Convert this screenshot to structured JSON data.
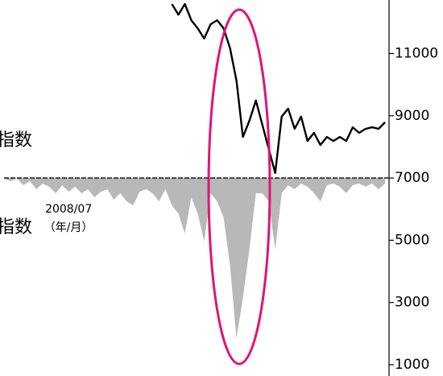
{
  "chart_data": {
    "type": "line",
    "y_axis_label": "指数",
    "area_axis_label": "指数",
    "x_label": "（年/月）",
    "categories": [
      null,
      null,
      null,
      null,
      null,
      null,
      null,
      null,
      null,
      null,
      "2008/07",
      null,
      null,
      null,
      null,
      null,
      null,
      null,
      null,
      null,
      null,
      null,
      null,
      null,
      null,
      null,
      null,
      null,
      null,
      null,
      null,
      null,
      null,
      null,
      null,
      null,
      null,
      null,
      null,
      null,
      null,
      null,
      null,
      null,
      null,
      null,
      null,
      null,
      null,
      null,
      null,
      null,
      null,
      null,
      null,
      null,
      null,
      null,
      null,
      null
    ],
    "series": [
      {
        "type": "area",
        "color": "#b8b8b8",
        "values": [
          6980,
          6900,
          6980,
          6770,
          6900,
          6640,
          6820,
          6720,
          6510,
          6770,
          6560,
          6720,
          6510,
          6640,
          6380,
          6560,
          6640,
          6300,
          6510,
          6250,
          6120,
          6560,
          6640,
          6510,
          6250,
          6640,
          6120,
          5860,
          5220,
          6380,
          5860,
          4960,
          6510,
          6250,
          5730,
          4180,
          1850,
          3150,
          4700,
          6510,
          6510,
          6250,
          4700,
          6510,
          6770,
          6640,
          6820,
          6720,
          6510,
          6250,
          6770,
          6820,
          6720,
          6510,
          6770,
          6820,
          6720,
          6820,
          6640,
          6820
        ]
      },
      {
        "type": "line",
        "color": "#000000",
        "values": [
          null,
          null,
          null,
          null,
          null,
          null,
          null,
          null,
          null,
          null,
          null,
          null,
          null,
          null,
          null,
          null,
          null,
          null,
          null,
          null,
          null,
          null,
          null,
          null,
          null,
          null,
          12590,
          12250,
          12590,
          12070,
          11810,
          11480,
          11940,
          12070,
          11810,
          11170,
          10130,
          8320,
          8840,
          9490,
          8710,
          7930,
          7160,
          8970,
          9230,
          8580,
          8970,
          8190,
          8450,
          8060,
          8320,
          8190,
          8320,
          8190,
          8630,
          8450,
          8580,
          8630,
          8580,
          8790
        ]
      }
    ],
    "ylim": [
      1000,
      12720
    ],
    "yticks": [
      1000,
      3000,
      5000,
      7000,
      9000,
      11000
    ]
  }
}
